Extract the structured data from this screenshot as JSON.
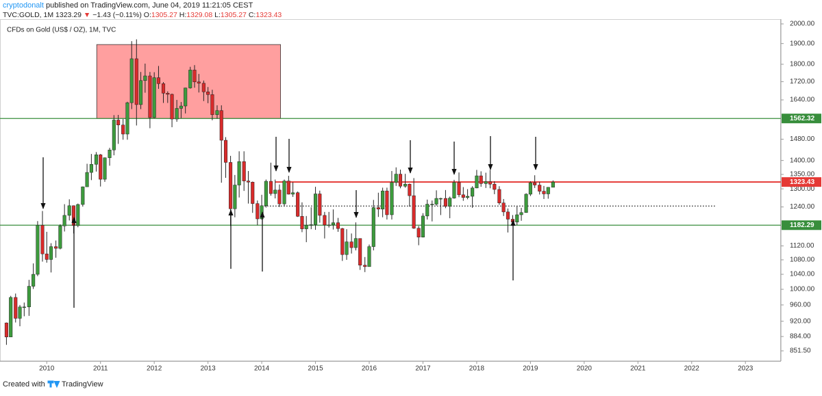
{
  "header": {
    "author": "cryptodonalt",
    "published": "published on TradingView.com, June 04, 2019 11:21:05 CEST",
    "symbol": "TVC:GOLD, 1M",
    "last": "1323.29",
    "direction": "▼",
    "change": "−1.43 (−0.11%)",
    "open_label": "O:",
    "open": "1305.27",
    "high_label": "H:",
    "high": "1329.08",
    "low_label": "L:",
    "low": "1305.27",
    "close_label": "C:",
    "close": "1323.43"
  },
  "footer": {
    "created": "Created with",
    "brand": "TradingView"
  },
  "chart_data": {
    "type": "candlestick",
    "title": "CFDs on Gold (US$ / OZ), 1M, TVC",
    "up_color": "#3d9b3d",
    "down_color": "#d92b2b",
    "log_scale": true,
    "grid": false,
    "xlim": [
      2009.13,
      2023.66
    ],
    "xticks": [
      2010,
      2011,
      2012,
      2013,
      2014,
      2015,
      2016,
      2017,
      2018,
      2019,
      2020,
      2021,
      2022,
      2023
    ],
    "ylim": [
      829,
      2025
    ],
    "yticks": [
      {
        "value": 2000,
        "label": "2000.00"
      },
      {
        "value": 1900,
        "label": "1900.00"
      },
      {
        "value": 1800,
        "label": "1800.00"
      },
      {
        "value": 1720,
        "label": "1720.00"
      },
      {
        "value": 1640,
        "label": "1640.00"
      },
      {
        "value": 1480,
        "label": "1480.00"
      },
      {
        "value": 1400,
        "label": "1400.00"
      },
      {
        "value": 1350,
        "label": "1350.00"
      },
      {
        "value": 1300,
        "label": "1300.00"
      },
      {
        "value": 1240,
        "label": "1240.00"
      },
      {
        "value": 1120,
        "label": "1120.00"
      },
      {
        "value": 1080,
        "label": "1080.00"
      },
      {
        "value": 1040,
        "label": "1040.00"
      },
      {
        "value": 1000,
        "label": "1000.00"
      },
      {
        "value": 960,
        "label": "960.00"
      },
      {
        "value": 920,
        "label": "920.00"
      },
      {
        "value": 884,
        "label": "884.00"
      },
      {
        "value": 851.5,
        "label": "851.50"
      }
    ],
    "levels": [
      {
        "value": 1562.32,
        "color": "#388e3c",
        "start": 2009.13
      },
      {
        "value": 1182.29,
        "color": "#388e3c",
        "start": 2009.13
      },
      {
        "value": 1323.43,
        "color": "#e53935",
        "start": 2014.25
      }
    ],
    "dotted_line": {
      "value": 1243,
      "start": 2014.0,
      "end": 2022.45
    },
    "zone": {
      "x0": 2010.93,
      "x1": 2014.35,
      "y0": 1562.32,
      "y1": 1895,
      "color": "#ff6b6b"
    },
    "x": [
      2009.25,
      2009.33,
      2009.42,
      2009.5,
      2009.58,
      2009.67,
      2009.75,
      2009.83,
      2009.92,
      2010,
      2010.08,
      2010.17,
      2010.25,
      2010.33,
      2010.42,
      2010.5,
      2010.58,
      2010.67,
      2010.75,
      2010.83,
      2010.92,
      2011,
      2011.08,
      2011.17,
      2011.25,
      2011.33,
      2011.42,
      2011.5,
      2011.58,
      2011.67,
      2011.75,
      2011.83,
      2011.92,
      2012,
      2012.08,
      2012.17,
      2012.25,
      2012.33,
      2012.42,
      2012.5,
      2012.58,
      2012.67,
      2012.75,
      2012.83,
      2012.92,
      2013,
      2013.08,
      2013.17,
      2013.25,
      2013.33,
      2013.42,
      2013.5,
      2013.58,
      2013.67,
      2013.75,
      2013.83,
      2013.92,
      2014,
      2014.08,
      2014.17,
      2014.25,
      2014.33,
      2014.42,
      2014.5,
      2014.58,
      2014.67,
      2014.75,
      2014.83,
      2014.92,
      2015,
      2015.08,
      2015.17,
      2015.25,
      2015.33,
      2015.42,
      2015.5,
      2015.58,
      2015.67,
      2015.75,
      2015.83,
      2015.92,
      2016,
      2016.08,
      2016.17,
      2016.25,
      2016.33,
      2016.42,
      2016.5,
      2016.58,
      2016.67,
      2016.75,
      2016.83,
      2016.92,
      2017,
      2017.08,
      2017.17,
      2017.25,
      2017.33,
      2017.42,
      2017.5,
      2017.58,
      2017.67,
      2017.75,
      2017.83,
      2017.92,
      2018,
      2018.08,
      2018.17,
      2018.25,
      2018.33,
      2018.42,
      2018.5,
      2018.58,
      2018.67,
      2018.75,
      2018.83,
      2018.92,
      2019,
      2019.08,
      2019.17,
      2019.25,
      2019.33,
      2019.42
    ],
    "open": [
      916,
      883,
      979,
      927,
      955,
      955,
      1008,
      1040,
      1182,
      1097,
      1081,
      1118,
      1113,
      1180,
      1213,
      1244,
      1181,
      1248,
      1307,
      1357,
      1386,
      1421,
      1333,
      1410,
      1439,
      1556,
      1536,
      1500,
      1628,
      1826,
      1620,
      1725,
      1746,
      1566,
      1738,
      1711,
      1669,
      1664,
      1560,
      1604,
      1614,
      1692,
      1773,
      1719,
      1713,
      1675,
      1663,
      1578,
      1595,
      1476,
      1393,
      1234,
      1313,
      1396,
      1327,
      1323,
      1251,
      1202,
      1244,
      1326,
      1284,
      1296,
      1250,
      1327,
      1282,
      1287,
      1210,
      1171,
      1182,
      1184,
      1283,
      1213,
      1183,
      1183,
      1190,
      1172,
      1095,
      1132,
      1115,
      1142,
      1065,
      1061,
      1118,
      1238,
      1233,
      1293,
      1215,
      1322,
      1351,
      1309,
      1316,
      1277,
      1173,
      1146,
      1211,
      1249,
      1249,
      1268,
      1268,
      1242,
      1269,
      1322,
      1280,
      1271,
      1275,
      1303,
      1345,
      1318,
      1325,
      1316,
      1298,
      1253,
      1224,
      1201,
      1192,
      1215,
      1222,
      1282,
      1321,
      1313,
      1292,
      1283,
      1305.27
    ],
    "high": [
      917,
      983,
      989,
      960,
      966,
      1025,
      1070,
      1195,
      1227,
      1162,
      1128,
      1136,
      1185,
      1249,
      1265,
      1245,
      1251,
      1308,
      1388,
      1424,
      1431,
      1424,
      1411,
      1447,
      1576,
      1577,
      1560,
      1632,
      1912,
      1921,
      1764,
      1803,
      1764,
      1763,
      1792,
      1718,
      1677,
      1667,
      1640,
      1631,
      1693,
      1788,
      1796,
      1755,
      1725,
      1696,
      1684,
      1617,
      1617,
      1488,
      1417,
      1348,
      1434,
      1434,
      1362,
      1325,
      1261,
      1280,
      1332,
      1392,
      1332,
      1315,
      1332,
      1345,
      1323,
      1291,
      1255,
      1211,
      1239,
      1307,
      1294,
      1224,
      1224,
      1232,
      1205,
      1174,
      1170,
      1157,
      1191,
      1142,
      1088,
      1124,
      1263,
      1287,
      1304,
      1304,
      1362,
      1375,
      1367,
      1352,
      1318,
      1337,
      1180,
      1220,
      1264,
      1261,
      1295,
      1270,
      1296,
      1274,
      1331,
      1357,
      1306,
      1299,
      1309,
      1366,
      1361,
      1356,
      1366,
      1326,
      1309,
      1266,
      1235,
      1214,
      1243,
      1237,
      1285,
      1326,
      1347,
      1324,
      1310,
      1306,
      1329.08
    ],
    "low": [
      865,
      883,
      917,
      908,
      932,
      933,
      1001,
      1035,
      1075,
      1072,
      1045,
      1086,
      1110,
      1163,
      1197,
      1157,
      1176,
      1241,
      1314,
      1330,
      1360,
      1308,
      1324,
      1381,
      1419,
      1462,
      1478,
      1478,
      1601,
      1534,
      1601,
      1671,
      1523,
      1564,
      1688,
      1627,
      1627,
      1527,
      1549,
      1564,
      1583,
      1689,
      1693,
      1672,
      1635,
      1626,
      1555,
      1562,
      1321,
      1338,
      1180,
      1207,
      1271,
      1293,
      1251,
      1221,
      1182,
      1200,
      1238,
      1277,
      1268,
      1240,
      1241,
      1281,
      1273,
      1208,
      1161,
      1131,
      1170,
      1168,
      1190,
      1142,
      1175,
      1169,
      1162,
      1077,
      1080,
      1098,
      1107,
      1052,
      1046,
      1062,
      1107,
      1208,
      1207,
      1200,
      1200,
      1310,
      1302,
      1304,
      1241,
      1171,
      1122,
      1145,
      1200,
      1194,
      1244,
      1214,
      1236,
      1204,
      1267,
      1272,
      1260,
      1265,
      1237,
      1302,
      1307,
      1303,
      1302,
      1282,
      1247,
      1211,
      1160,
      1180,
      1183,
      1196,
      1221,
      1276,
      1303,
      1281,
      1266,
      1267,
      1305.27
    ],
    "close": [
      883,
      979,
      927,
      955,
      955,
      1008,
      1040,
      1182,
      1097,
      1081,
      1118,
      1113,
      1180,
      1213,
      1244,
      1181,
      1248,
      1307,
      1357,
      1386,
      1421,
      1333,
      1410,
      1439,
      1556,
      1536,
      1500,
      1628,
      1826,
      1620,
      1725,
      1746,
      1566,
      1738,
      1711,
      1669,
      1664,
      1560,
      1604,
      1614,
      1692,
      1773,
      1719,
      1713,
      1675,
      1663,
      1578,
      1595,
      1476,
      1393,
      1234,
      1313,
      1396,
      1327,
      1323,
      1251,
      1202,
      1244,
      1326,
      1284,
      1296,
      1250,
      1327,
      1282,
      1287,
      1210,
      1171,
      1182,
      1184,
      1283,
      1213,
      1183,
      1183,
      1190,
      1172,
      1095,
      1132,
      1115,
      1142,
      1065,
      1061,
      1118,
      1238,
      1233,
      1293,
      1215,
      1322,
      1351,
      1309,
      1316,
      1277,
      1173,
      1146,
      1211,
      1249,
      1249,
      1268,
      1268,
      1242,
      1269,
      1322,
      1280,
      1271,
      1275,
      1303,
      1345,
      1318,
      1325,
      1316,
      1298,
      1253,
      1224,
      1201,
      1192,
      1215,
      1222,
      1282,
      1321,
      1313,
      1292,
      1283,
      1305.27,
      1323.43
    ]
  }
}
